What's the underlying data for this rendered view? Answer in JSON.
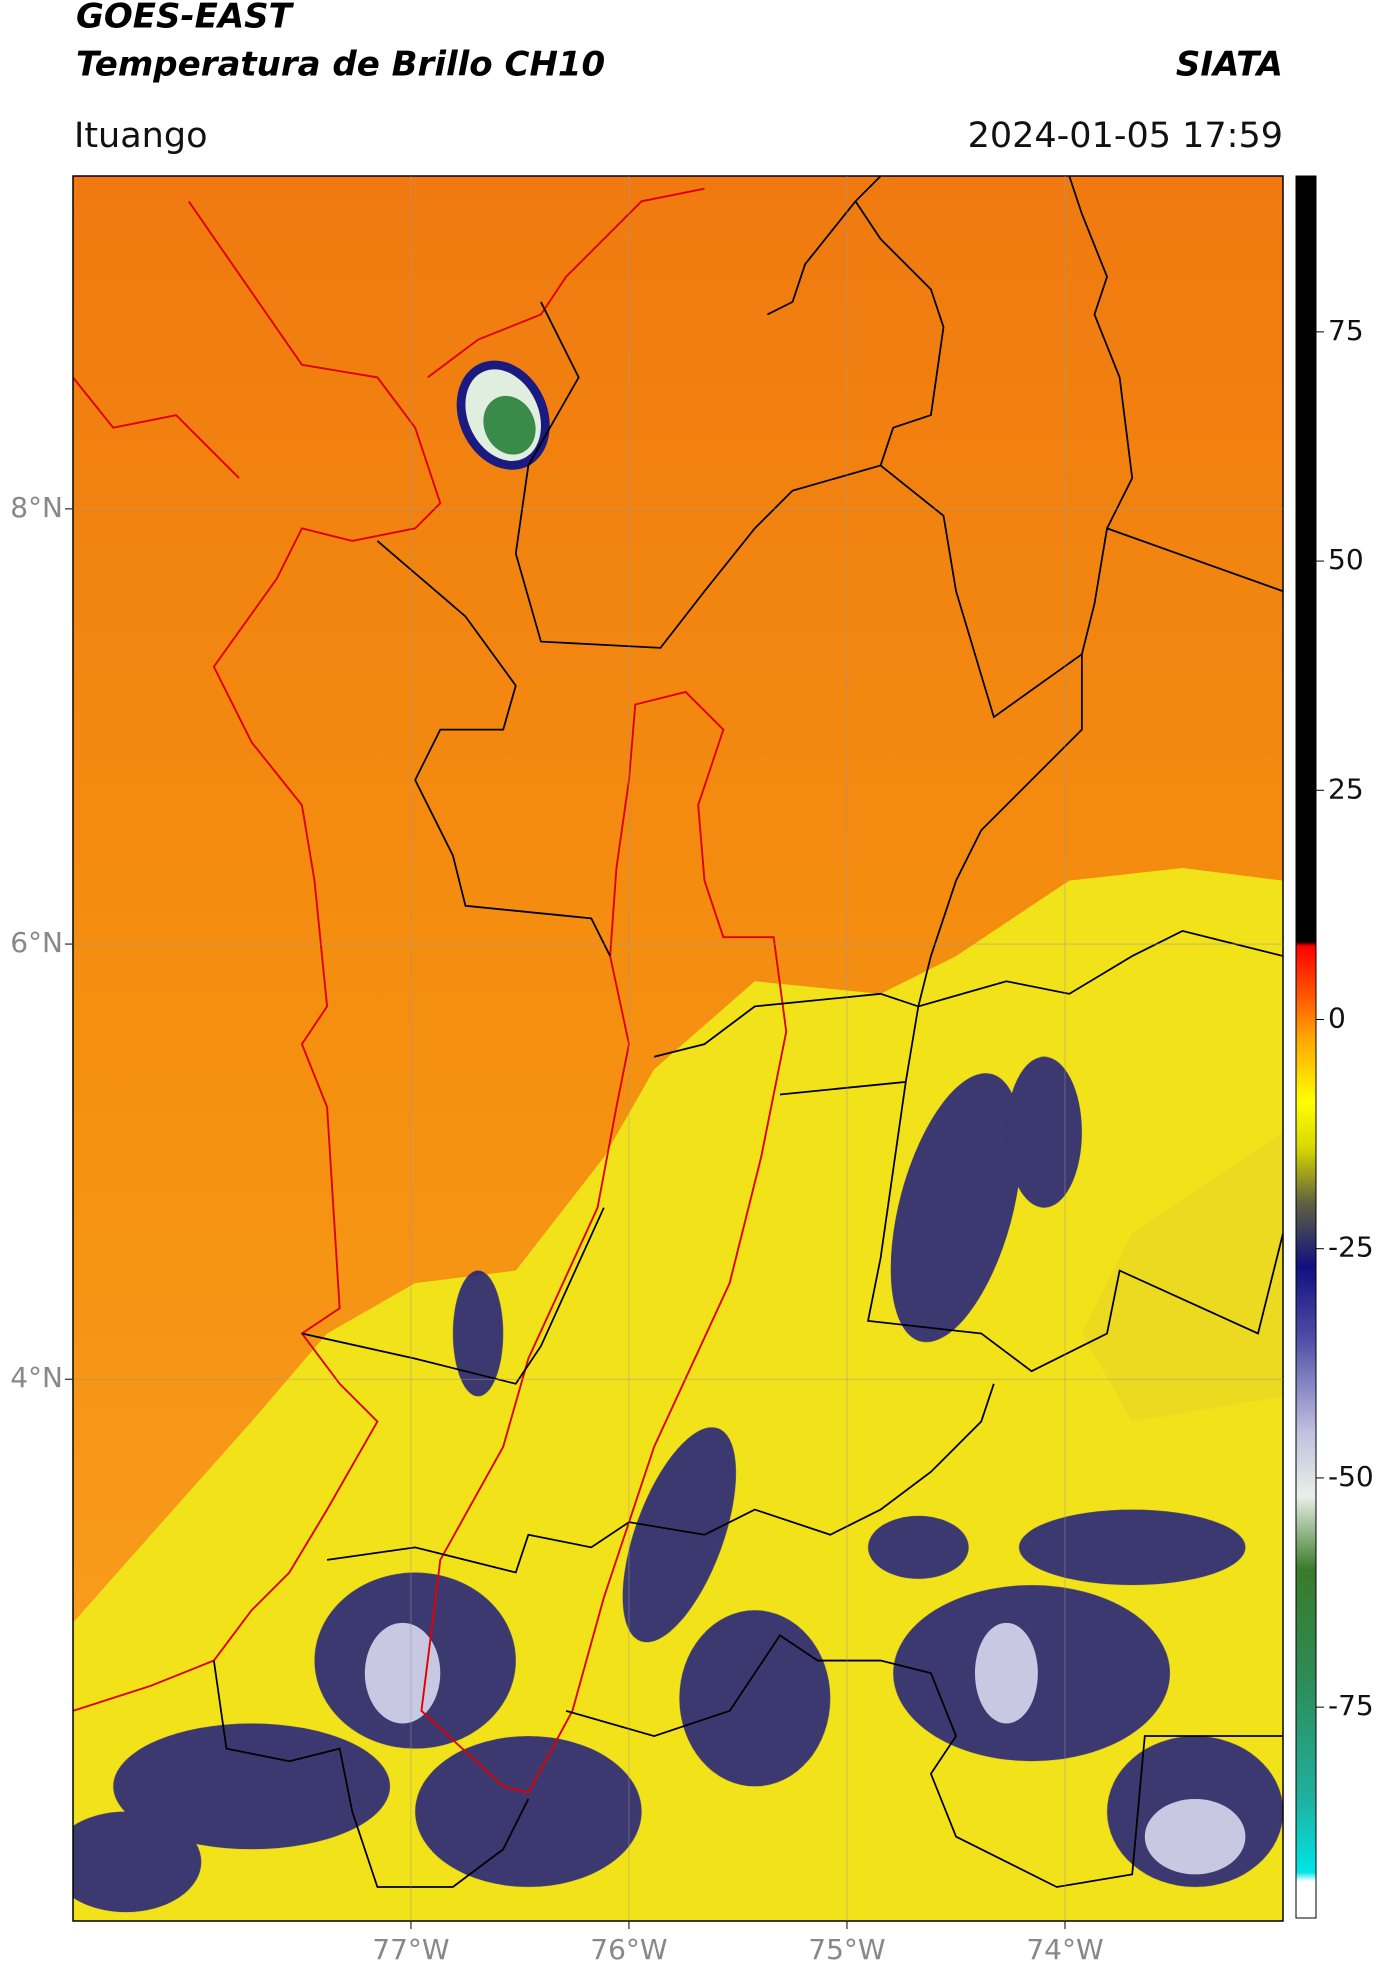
{
  "header": {
    "title": "GOES-EAST",
    "subtitle": "Temperatura de Brillo CH10",
    "source": "SIATA",
    "location": "Ituango",
    "datetime": "2024-01-05 17:59"
  },
  "map": {
    "xlim": [
      -78.55,
      -73.0
    ],
    "ylim": [
      1.51,
      9.53
    ],
    "xticks": [
      {
        "value": -77,
        "label": "77°W"
      },
      {
        "value": -76,
        "label": "76°W"
      },
      {
        "value": -75,
        "label": "75°W"
      },
      {
        "value": -74,
        "label": "74°W"
      }
    ],
    "yticks": [
      {
        "value": 8,
        "label": "8°N"
      },
      {
        "value": 6,
        "label": "6°N"
      },
      {
        "value": 4,
        "label": "4°N"
      }
    ],
    "grid": true
  },
  "colorbar": {
    "lim": [
      -98,
      92
    ],
    "ticks": [
      75,
      50,
      25,
      0,
      -25,
      -50,
      -75
    ],
    "stops": [
      {
        "value": -98,
        "color": "#ffffff"
      },
      {
        "value": -94,
        "color": "#ffffff"
      },
      {
        "value": -93,
        "color": "#00e5e5"
      },
      {
        "value": -85,
        "color": "#20b0a0"
      },
      {
        "value": -72,
        "color": "#2e8b57"
      },
      {
        "value": -60,
        "color": "#3a7a2a"
      },
      {
        "value": -52,
        "color": "#e8f0e8"
      },
      {
        "value": -45,
        "color": "#c0c0e0"
      },
      {
        "value": -35,
        "color": "#5050a8"
      },
      {
        "value": -27,
        "color": "#101080"
      },
      {
        "value": -20,
        "color": "#606040"
      },
      {
        "value": -14,
        "color": "#d8d800"
      },
      {
        "value": -9,
        "color": "#ffff00"
      },
      {
        "value": -2,
        "color": "#ffa500"
      },
      {
        "value": 3,
        "color": "#ff5000"
      },
      {
        "value": 8,
        "color": "#ff0000"
      },
      {
        "value": 8.5,
        "color": "#000000"
      },
      {
        "value": 92,
        "color": "#000000"
      }
    ]
  }
}
